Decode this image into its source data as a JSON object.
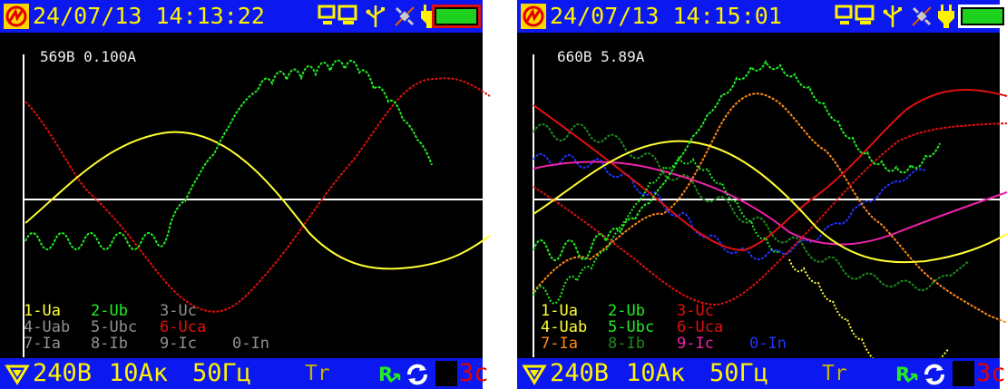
{
  "left": {
    "datetime": "24/07/13 14:13:22",
    "readout": "569В 0.100А",
    "legend": [
      [
        {
          "text": "1-Ua",
          "color": "#ffff33"
        },
        {
          "text": "2-Ub",
          "color": "#22ee22"
        },
        {
          "text": "3-Uc",
          "color": "#909090"
        }
      ],
      [
        {
          "text": "4-Uab",
          "color": "#909090"
        },
        {
          "text": "5-Ubc",
          "color": "#909090"
        },
        {
          "text": "6-Uca",
          "color": "#e01010"
        }
      ],
      [
        {
          "text": "7-Ia",
          "color": "#909090"
        },
        {
          "text": "8-Ib",
          "color": "#909090"
        },
        {
          "text": "9-Ic",
          "color": "#909090"
        },
        {
          "text": "0-In",
          "color": "#909090"
        }
      ]
    ],
    "footer": {
      "voltage": "240В",
      "current": "10Ак",
      "freq": "50Гц",
      "mode": "Tr",
      "timer": "3с"
    }
  },
  "right": {
    "datetime": "24/07/13 14:15:01",
    "readout": "660В 5.89А",
    "legend": [
      [
        {
          "text": "1-Ua",
          "color": "#ffff33"
        },
        {
          "text": "2-Ub",
          "color": "#22ee22"
        },
        {
          "text": "3-Uc",
          "color": "#e01010"
        }
      ],
      [
        {
          "text": "4-Uab",
          "color": "#ffff33"
        },
        {
          "text": "5-Ubc",
          "color": "#22ee22"
        },
        {
          "text": "6-Uca",
          "color": "#e01010"
        }
      ],
      [
        {
          "text": "7-Ia",
          "color": "#ff8a1a"
        },
        {
          "text": "8-Ib",
          "color": "#1e8a1e"
        },
        {
          "text": "9-Ic",
          "color": "#ee22aa"
        },
        {
          "text": "0-In",
          "color": "#2233ff"
        }
      ]
    ],
    "footer": {
      "voltage": "240В",
      "current": "10Ак",
      "freq": "50Гц",
      "mode": "Tr",
      "timer": "3с"
    }
  },
  "colors": {
    "bar": "#0b18f0",
    "header_text": "#fff200",
    "axis": "#ffffff",
    "ua": "#ffff33",
    "ub": "#22ee22",
    "uc": "#e01010",
    "ia": "#ff8a1a",
    "ib": "#1e8a1e",
    "ic": "#ee22aa",
    "in": "#2233ff",
    "battery": "#1fd11f"
  },
  "icons": [
    "logo-icon",
    "pc-icon",
    "usb-icon",
    "satellite-icon",
    "power-plug-icon",
    "battery-icon",
    "filter-triangle-icon",
    "r-arrow-icon",
    "refresh-icon"
  ]
}
